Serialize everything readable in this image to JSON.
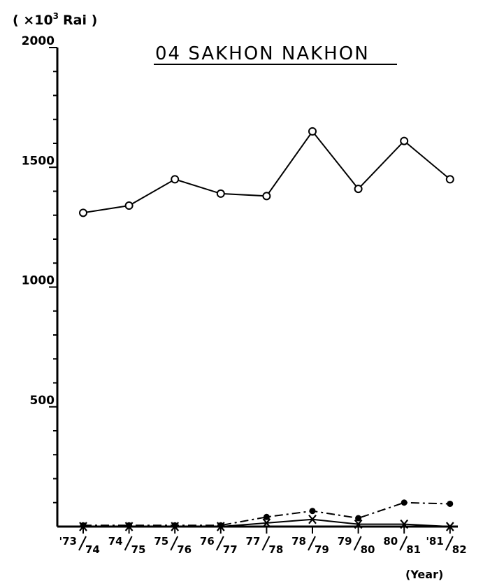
{
  "chart_data": {
    "type": "line",
    "title": "04 SAKHON NAKHON",
    "ylabel": "( ×10",
    "ylabel_exp": "3",
    "ylabel_unit": "Rai )",
    "xlabel": "(Year)",
    "ylim": [
      0,
      2000
    ],
    "y_ticks": [
      500,
      1000,
      1500,
      2000
    ],
    "y_tick_labels": [
      "500",
      "1000",
      "1500",
      "2000"
    ],
    "grid": false,
    "categories": [
      {
        "top": "'73",
        "bottom": "74"
      },
      {
        "top": "74",
        "bottom": "75"
      },
      {
        "top": "75",
        "bottom": "76"
      },
      {
        "top": "76",
        "bottom": "77"
      },
      {
        "top": "77",
        "bottom": "78"
      },
      {
        "top": "78",
        "bottom": "79"
      },
      {
        "top": "79",
        "bottom": "80"
      },
      {
        "top": "80",
        "bottom": "81"
      },
      {
        "top": "'81",
        "bottom": "82"
      }
    ],
    "series": [
      {
        "marker": "open-circle",
        "line": "solid",
        "values": [
          1310,
          1340,
          1450,
          1390,
          1380,
          1650,
          1410,
          1610,
          1450
        ]
      },
      {
        "marker": "filled-dot",
        "line": "dash-dot",
        "values": [
          5,
          5,
          5,
          5,
          40,
          65,
          35,
          100,
          95
        ]
      },
      {
        "marker": "x-cross",
        "line": "solid",
        "values": [
          0,
          0,
          0,
          0,
          15,
          30,
          10,
          10,
          0
        ]
      }
    ]
  }
}
